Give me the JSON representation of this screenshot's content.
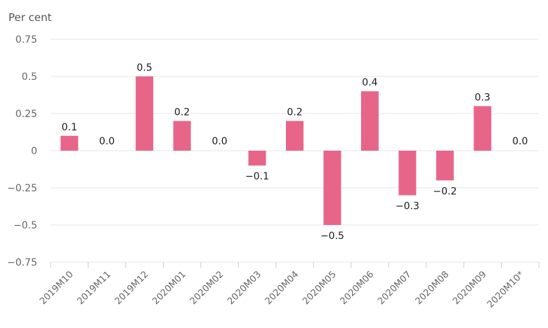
{
  "chart_data": {
    "type": "bar",
    "title": "",
    "ylabel": "Per cent",
    "xlabel": "",
    "ylim": [
      -0.75,
      0.75
    ],
    "yticks": [
      0.75,
      0.5,
      0.25,
      0,
      -0.25,
      -0.5,
      -0.75
    ],
    "ytick_labels": [
      "0.75",
      "0.5",
      "0.25",
      "0",
      "−0.25",
      "−0.5",
      "−0.75"
    ],
    "categories": [
      "2019M10",
      "2019M11",
      "2019M12",
      "2020M01",
      "2020M02",
      "2020M03",
      "2020M04",
      "2020M05",
      "2020M06",
      "2020M07",
      "2020M08",
      "2020M09",
      "2020M10*"
    ],
    "values": [
      0.1,
      0.0,
      0.5,
      0.2,
      0.0,
      -0.1,
      0.2,
      -0.5,
      0.4,
      -0.3,
      -0.2,
      0.3,
      0.0
    ],
    "data_labels": [
      "0.1",
      "0.0",
      "0.5",
      "0.2",
      "0.0",
      "−0.1",
      "0.2",
      "−0.5",
      "0.4",
      "−0.3",
      "−0.2",
      "0.3",
      "0.0"
    ],
    "bar_color": "#e8658a",
    "grid": true,
    "legend": "none"
  }
}
